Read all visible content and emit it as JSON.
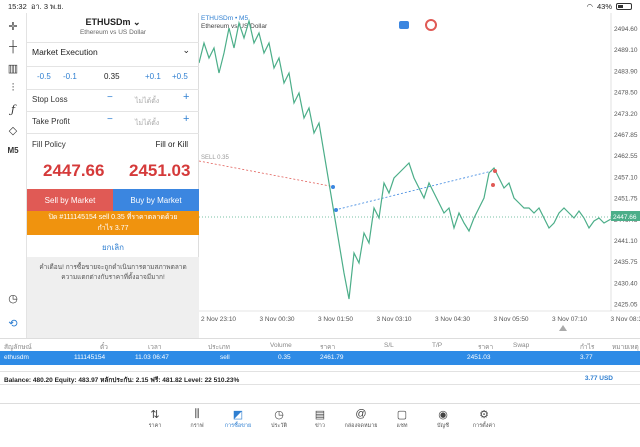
{
  "status": {
    "time": "15:32",
    "date": "อา. 3 พ.ย.",
    "battery": "43%",
    "battery_level": 0.43
  },
  "symbol": {
    "name": "ETHUSDm",
    "description": "Ethereum vs US Dollar"
  },
  "order": {
    "execution": "Market Execution",
    "vol_minus": [
      "-0.5",
      "-0.1"
    ],
    "volume": "0.35",
    "vol_plus": [
      "+0.1",
      "+0.5"
    ],
    "stop_loss_label": "Stop Loss",
    "take_profit_label": "Take Profit",
    "not_set": "ไม่ได้ตั้ง",
    "fill_policy_label": "Fill Policy",
    "fill_policy_value": "Fill or Kill",
    "sell_price_main": "2447.",
    "sell_price_small": "66",
    "buy_price_main": "2451.",
    "buy_price_small": "03",
    "sell_button": "Sell by Market",
    "buy_button": "Buy by Market",
    "close_line1": "ปิด #111145154 sell 0.35 ที่ราคาตลาดด้วย",
    "close_line2": "กำไร 3.77",
    "cancel": "ยกเลิก",
    "warning": "คำเตือน! การซื้อขายจะถูกดำเนินการตามสภาพตลาด ความแตกต่างกับราคาที่ตั้งอาจมีมาก!"
  },
  "chart": {
    "symbol_tf": "ETHUSDm • M5",
    "subtitle": "Ethereum vs US Dollar",
    "sell_marker": "SELL 0.35",
    "current_price": "2447.66",
    "y_ticks": [
      "2494.60",
      "2489.10",
      "2483.90",
      "2478.50",
      "2473.20",
      "2467.85",
      "2462.55",
      "2457.10",
      "2451.75",
      "2446.45",
      "2441.10",
      "2435.75",
      "2430.40",
      "2425.05"
    ],
    "x_ticks": [
      "2 Nov 23:10",
      "3 Nov 00:30",
      "3 Nov 01:50",
      "3 Nov 03:10",
      "3 Nov 04:30",
      "3 Nov 05:50",
      "3 Nov 07:10",
      "3 Nov 08:30"
    ]
  },
  "table": {
    "headers": [
      "สัญลักษณ์",
      "ตั๋ว",
      "เวลา",
      "ประเภท",
      "Volume",
      "ราคา",
      "S/L",
      "T/P",
      "ราคา",
      "Swap",
      "กำไร",
      "หมายเหตุ"
    ],
    "row": [
      "ethusdm",
      "111145154",
      "11.03 06:47",
      "sell",
      "0.35",
      "2461.79",
      "",
      "",
      "2451.03",
      "",
      "3.77",
      ""
    ]
  },
  "balance": {
    "text": "Balance: 480.20 Equity: 483.97 หลักประกัน: 2.15 ฟรี: 481.82 Level: 22 510.23%",
    "profit": "3.77  USD"
  },
  "nav": [
    "ราคา",
    "กราฟ",
    "การซื้อขาย",
    "ประวัติ",
    "ข่าว",
    "กล่องจดหมาย",
    "แชท",
    "บัญชี",
    "การตั้งค่า"
  ]
}
